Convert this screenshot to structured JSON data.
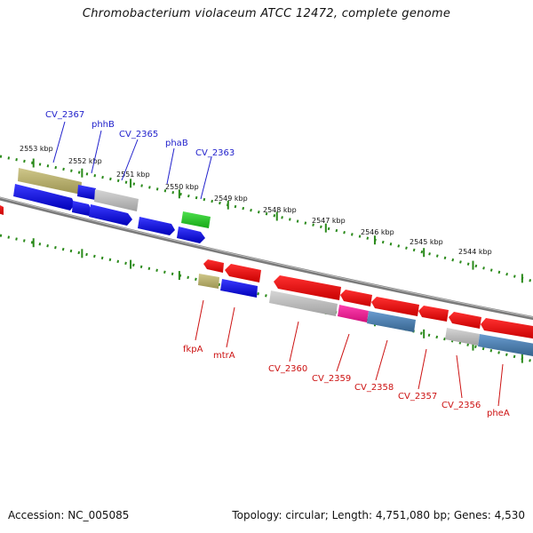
{
  "title": "Chromobacterium violaceum ATCC 12472, complete genome",
  "footer": {
    "accession": "Accession: NC_005085",
    "stats": "Topology: circular; Length: 4,751,080 bp; Genes: 4,530"
  },
  "colors": {
    "backbone": "#8a8a8a",
    "ruler": "#2a8a1a",
    "forward_label": "#2222cc",
    "reverse_label": "#cc1111"
  },
  "ruler_labels": [
    "2553 kbp",
    "2552 kbp",
    "2551 kbp",
    "2550 kbp",
    "2549 kbp",
    "2548 kbp",
    "2547 kbp",
    "2546 kbp",
    "2545 kbp",
    "2544 kbp"
  ],
  "forward_gene_labels": [
    "CV_2367",
    "phhB",
    "CV_2365",
    "phaB",
    "CV_2363"
  ],
  "reverse_gene_labels": [
    "fkpA",
    "mtrA",
    "CV_2360",
    "CV_2359",
    "CV_2358",
    "CV_2357",
    "CV_2356",
    "pheA"
  ],
  "features": [
    {
      "strand": "forward",
      "color": "#bdb76b",
      "icon": "gene-block"
    },
    {
      "strand": "forward",
      "color": "#0000ee",
      "icon": "gene-arrow-left"
    },
    {
      "strand": "forward",
      "color": "#0000ee",
      "icon": "gene-arrow-right"
    },
    {
      "strand": "forward",
      "color": "#c0c0c0",
      "icon": "gene-block"
    },
    {
      "strand": "forward",
      "color": "#22cc22",
      "icon": "gene-block"
    },
    {
      "strand": "reverse",
      "color": "#ee0000",
      "icon": "gene-arrow-left"
    },
    {
      "strand": "reverse",
      "color": "#0000ee",
      "icon": "gene-block"
    },
    {
      "strand": "reverse",
      "color": "#c0c0c0",
      "icon": "gene-block"
    },
    {
      "strand": "reverse",
      "color": "#ff1493",
      "icon": "gene-block"
    },
    {
      "strand": "reverse",
      "color": "#4682b4",
      "icon": "gene-block"
    }
  ]
}
